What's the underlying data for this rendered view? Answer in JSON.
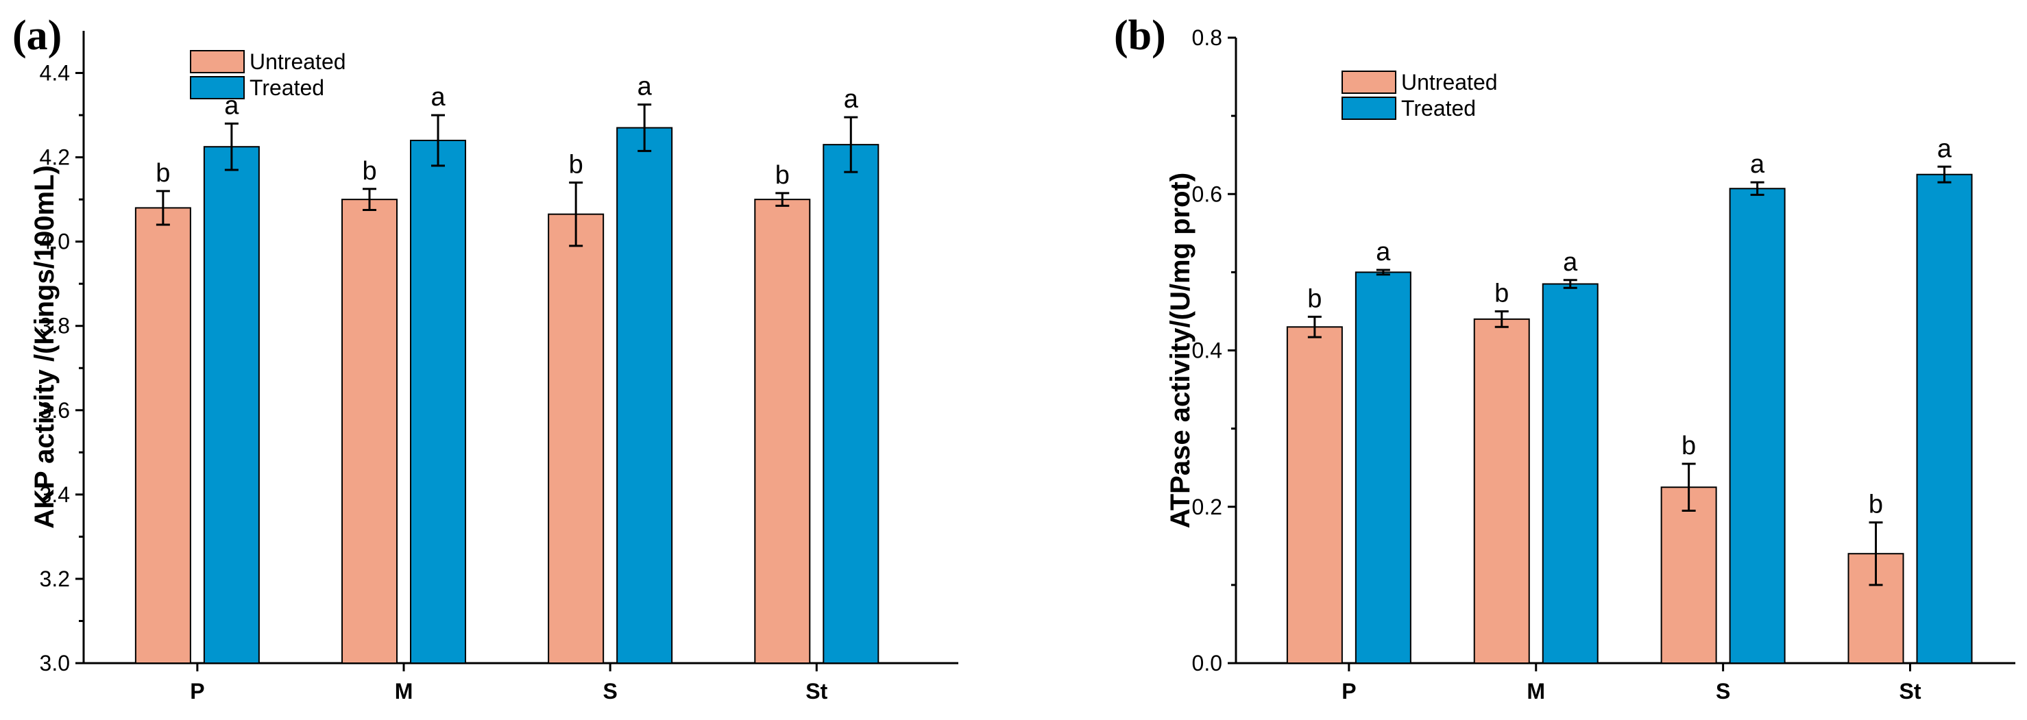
{
  "figure": {
    "panel_labels": [
      "(a)",
      "(b)"
    ]
  },
  "colors": {
    "untreated": "#F2A488",
    "treated": "#0095CF"
  },
  "chart_data": [
    {
      "panel": "(a)",
      "type": "bar",
      "ylabel": "AKP activity /(Kings/100mL)",
      "xlabel": "",
      "ylim": [
        3.0,
        4.5
      ],
      "yticks": [
        3.0,
        3.2,
        3.4,
        3.6,
        3.8,
        4.0,
        4.2,
        4.4
      ],
      "tick_format": "0.0",
      "categories": [
        "P",
        "M",
        "S",
        "St"
      ],
      "legend": {
        "position": "top-left",
        "entries": [
          "Untreated",
          "Treated"
        ]
      },
      "series": [
        {
          "name": "Untreated",
          "values": [
            4.08,
            4.1,
            4.065,
            4.1
          ],
          "errors": [
            0.04,
            0.025,
            0.075,
            0.015
          ],
          "labels": [
            "b",
            "b",
            "b",
            "b"
          ]
        },
        {
          "name": "Treated",
          "values": [
            4.225,
            4.24,
            4.27,
            4.23
          ],
          "errors": [
            0.055,
            0.06,
            0.055,
            0.065
          ],
          "labels": [
            "a",
            "a",
            "a",
            "a"
          ]
        }
      ]
    },
    {
      "panel": "(b)",
      "type": "bar",
      "ylabel": "ATPase activity/(U/mg prot)",
      "xlabel": "",
      "ylim": [
        0.0,
        0.8
      ],
      "yticks": [
        0.0,
        0.2,
        0.4,
        0.6,
        0.8
      ],
      "tick_format": "0.0",
      "categories": [
        "P",
        "M",
        "S",
        "St"
      ],
      "legend": {
        "position": "top-left",
        "entries": [
          "Untreated",
          "Treated"
        ]
      },
      "series": [
        {
          "name": "Untreated",
          "values": [
            0.43,
            0.44,
            0.225,
            0.14
          ],
          "errors": [
            0.013,
            0.01,
            0.03,
            0.04
          ],
          "labels": [
            "b",
            "b",
            "b",
            "b"
          ]
        },
        {
          "name": "Treated",
          "values": [
            0.5,
            0.485,
            0.607,
            0.625
          ],
          "errors": [
            0.003,
            0.005,
            0.008,
            0.01
          ],
          "labels": [
            "a",
            "a",
            "a",
            "a"
          ]
        }
      ]
    }
  ]
}
